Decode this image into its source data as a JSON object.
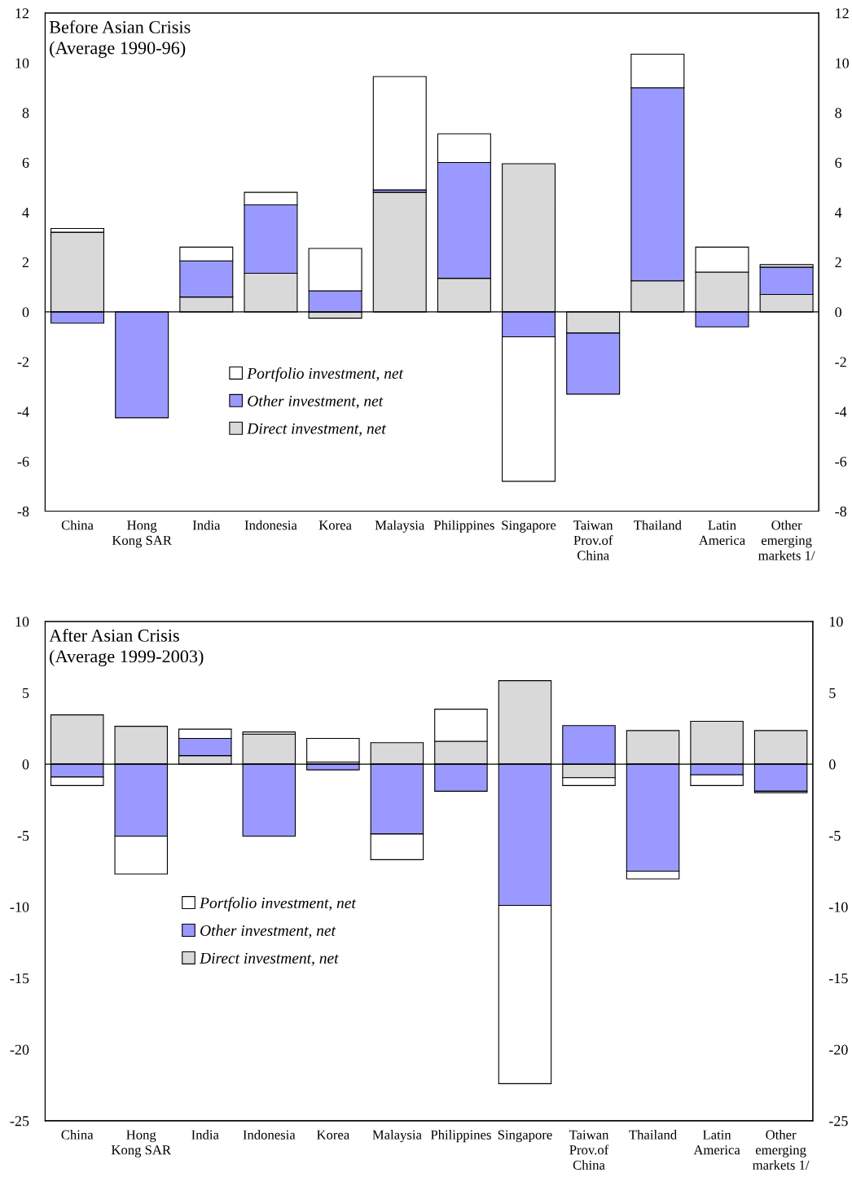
{
  "chart_data": [
    {
      "type": "bar",
      "stacked": true,
      "title": "Before Asian Crisis\n(Average 1990-96)",
      "categories": [
        "China",
        "Hong\nKong SAR",
        "India",
        "Indonesia",
        "Korea",
        "Malaysia",
        "Philippines",
        "Singapore",
        "Taiwan\nProv.of\nChina",
        "Thailand",
        "Latin\nAmerica",
        "Other\nemerging\nmarkets 1/"
      ],
      "series": [
        {
          "name": "Direct investment, net",
          "color": "#d9d9d9",
          "values": [
            3.2,
            0,
            0.6,
            1.55,
            -0.25,
            4.8,
            1.35,
            5.95,
            -0.85,
            1.25,
            1.6,
            0.7
          ]
        },
        {
          "name": "Other investment, net",
          "color": "#9999ff",
          "values": [
            -0.45,
            -4.25,
            1.45,
            2.75,
            0.85,
            0.1,
            4.65,
            -1.0,
            -2.45,
            7.75,
            -0.6,
            1.1
          ]
        },
        {
          "name": "Portfolio investment, net",
          "color": "#ffffff",
          "values": [
            0.15,
            0,
            0.55,
            0.5,
            1.7,
            4.55,
            1.15,
            -5.8,
            0,
            1.35,
            1.0,
            0.1
          ]
        }
      ],
      "ylim": [
        -8,
        12
      ],
      "yticks": [
        -8,
        -6,
        -4,
        -2,
        0,
        2,
        4,
        6,
        8,
        10,
        12
      ],
      "y2lim": [
        -8,
        12
      ],
      "y2ticks": [
        -8,
        -6,
        -4,
        -2,
        0,
        2,
        4,
        6,
        8,
        10,
        12
      ],
      "grid": false,
      "legend": "center",
      "ref_lines": [
        {
          "axis": "y",
          "value": 0,
          "color": "#000000"
        }
      ]
    },
    {
      "type": "bar",
      "stacked": true,
      "title": "After Asian Crisis\n(Average 1999-2003)",
      "categories": [
        "China",
        "Hong\nKong SAR",
        "India",
        "Indonesia",
        "Korea",
        "Malaysia",
        "Philippines",
        "Singapore",
        "Taiwan\nProv.of\nChina",
        "Thailand",
        "Latin\nAmerica",
        "Other\nemerging\nmarkets 1/"
      ],
      "series": [
        {
          "name": "Direct investment, net",
          "color": "#d9d9d9",
          "values": [
            3.45,
            2.65,
            0.6,
            2.1,
            0.15,
            1.5,
            1.6,
            5.85,
            -0.95,
            2.35,
            3.0,
            2.35
          ]
        },
        {
          "name": "Other investment, net",
          "color": "#9999ff",
          "values": [
            -0.9,
            -5.05,
            1.2,
            -5.05,
            -0.4,
            -4.9,
            -1.9,
            -9.9,
            2.7,
            -7.5,
            -0.75,
            -1.9
          ]
        },
        {
          "name": "Portfolio investment, net",
          "color": "#ffffff",
          "values": [
            -0.6,
            -2.65,
            0.65,
            0.15,
            1.65,
            -1.8,
            2.25,
            -12.5,
            -0.55,
            -0.55,
            -0.75,
            -0.1
          ]
        }
      ],
      "ylim": [
        -25,
        10
      ],
      "yticks": [
        -25,
        -20,
        -15,
        -10,
        -5,
        0,
        5,
        10
      ],
      "y2lim": [
        -25,
        10
      ],
      "y2ticks": [
        -25,
        -20,
        -15,
        -10,
        -5,
        0,
        5,
        10
      ],
      "grid": false,
      "legend": "center left",
      "ref_lines": [
        {
          "axis": "y",
          "value": 0,
          "color": "#000000"
        }
      ]
    }
  ]
}
